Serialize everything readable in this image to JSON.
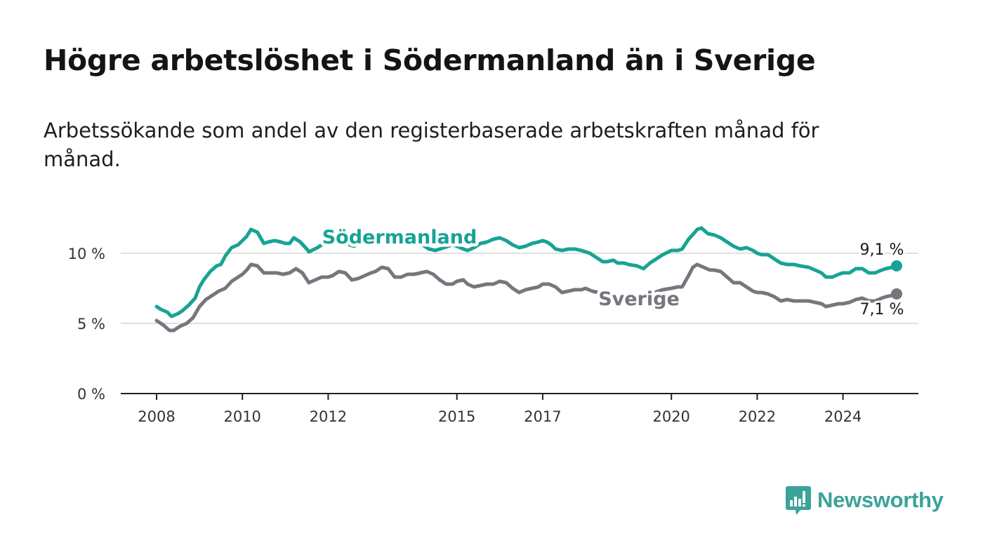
{
  "header": {
    "title": "Högre arbetslöshet i Södermanland än i Sverige",
    "subtitle": "Arbetssökande som andel av den registerbaserade arbetskraften månad för månad."
  },
  "brand": {
    "name": "Newsworthy",
    "icon": "newsworthy-logo-icon",
    "color": "#3aa39a"
  },
  "chart_data": {
    "type": "line",
    "title": "Högre arbetslöshet i Södermanland än i Sverige",
    "subtitle": "Arbetssökande som andel av den registerbaserade arbetskraften månad för månad.",
    "xlabel": "",
    "ylabel": "",
    "xlim": [
      2007.8,
      2025.8
    ],
    "ylim": [
      0,
      12
    ],
    "grid": true,
    "legend": "inline-labels",
    "x_ticks": [
      {
        "value": 2008,
        "label": "2008"
      },
      {
        "value": 2010,
        "label": "2010"
      },
      {
        "value": 2012,
        "label": "2012"
      },
      {
        "value": 2015,
        "label": "2015"
      },
      {
        "value": 2017,
        "label": "2017"
      },
      {
        "value": 2020,
        "label": "2020"
      },
      {
        "value": 2022,
        "label": "2022"
      },
      {
        "value": 2024,
        "label": "2024"
      }
    ],
    "y_ticks": [
      {
        "value": 0,
        "label": "0 %"
      },
      {
        "value": 5,
        "label": "5 %"
      },
      {
        "value": 10,
        "label": "10 %"
      }
    ],
    "series": [
      {
        "name": "Södermanland",
        "color": "#17a394",
        "end_label": "9,1 %",
        "points": [
          [
            2008.0,
            6.2
          ],
          [
            2008.1,
            6.0
          ],
          [
            2008.25,
            5.8
          ],
          [
            2008.35,
            5.5
          ],
          [
            2008.5,
            5.7
          ],
          [
            2008.6,
            5.9
          ],
          [
            2008.75,
            6.3
          ],
          [
            2008.9,
            6.8
          ],
          [
            2009.0,
            7.6
          ],
          [
            2009.1,
            8.1
          ],
          [
            2009.25,
            8.7
          ],
          [
            2009.4,
            9.1
          ],
          [
            2009.5,
            9.2
          ],
          [
            2009.6,
            9.8
          ],
          [
            2009.75,
            10.4
          ],
          [
            2009.9,
            10.6
          ],
          [
            2010.0,
            10.9
          ],
          [
            2010.1,
            11.2
          ],
          [
            2010.2,
            11.7
          ],
          [
            2010.35,
            11.5
          ],
          [
            2010.5,
            10.7
          ],
          [
            2010.6,
            10.8
          ],
          [
            2010.75,
            10.9
          ],
          [
            2010.9,
            10.8
          ],
          [
            2011.0,
            10.7
          ],
          [
            2011.1,
            10.7
          ],
          [
            2011.2,
            11.1
          ],
          [
            2011.35,
            10.8
          ],
          [
            2011.5,
            10.3
          ],
          [
            2011.55,
            10.1
          ],
          [
            2011.75,
            10.4
          ],
          [
            2011.9,
            10.7
          ],
          [
            2012.0,
            10.7
          ],
          [
            2012.1,
            10.9
          ],
          [
            2012.25,
            11.3
          ],
          [
            2012.4,
            11.0
          ],
          [
            2012.5,
            10.6
          ],
          [
            2012.6,
            10.5
          ],
          [
            2012.75,
            10.8
          ],
          [
            2012.9,
            11.0
          ],
          [
            2013.0,
            11.2
          ],
          [
            2013.2,
            11.4
          ],
          [
            2013.4,
            11.1
          ],
          [
            2013.6,
            10.9
          ],
          [
            2013.8,
            10.8
          ],
          [
            2014.0,
            10.8
          ],
          [
            2014.2,
            10.6
          ],
          [
            2014.35,
            10.3
          ],
          [
            2014.5,
            10.2
          ],
          [
            2014.7,
            10.4
          ],
          [
            2014.9,
            10.6
          ],
          [
            2015.0,
            10.5
          ],
          [
            2015.15,
            10.3
          ],
          [
            2015.25,
            10.2
          ],
          [
            2015.4,
            10.4
          ],
          [
            2015.55,
            10.7
          ],
          [
            2015.7,
            10.8
          ],
          [
            2015.85,
            11.0
          ],
          [
            2016.0,
            11.1
          ],
          [
            2016.15,
            10.9
          ],
          [
            2016.3,
            10.6
          ],
          [
            2016.45,
            10.4
          ],
          [
            2016.6,
            10.5
          ],
          [
            2016.75,
            10.7
          ],
          [
            2016.9,
            10.8
          ],
          [
            2017.0,
            10.9
          ],
          [
            2017.1,
            10.8
          ],
          [
            2017.2,
            10.6
          ],
          [
            2017.3,
            10.3
          ],
          [
            2017.45,
            10.2
          ],
          [
            2017.6,
            10.3
          ],
          [
            2017.75,
            10.3
          ],
          [
            2017.9,
            10.2
          ],
          [
            2018.0,
            10.1
          ],
          [
            2018.1,
            10.0
          ],
          [
            2018.25,
            9.7
          ],
          [
            2018.4,
            9.4
          ],
          [
            2018.5,
            9.4
          ],
          [
            2018.65,
            9.5
          ],
          [
            2018.75,
            9.3
          ],
          [
            2018.9,
            9.3
          ],
          [
            2019.0,
            9.2
          ],
          [
            2019.2,
            9.1
          ],
          [
            2019.35,
            8.9
          ],
          [
            2019.5,
            9.3
          ],
          [
            2019.65,
            9.6
          ],
          [
            2019.8,
            9.9
          ],
          [
            2020.0,
            10.2
          ],
          [
            2020.15,
            10.2
          ],
          [
            2020.25,
            10.3
          ],
          [
            2020.4,
            11.0
          ],
          [
            2020.55,
            11.5
          ],
          [
            2020.6,
            11.7
          ],
          [
            2020.7,
            11.8
          ],
          [
            2020.85,
            11.4
          ],
          [
            2021.0,
            11.3
          ],
          [
            2021.15,
            11.1
          ],
          [
            2021.3,
            10.8
          ],
          [
            2021.45,
            10.5
          ],
          [
            2021.6,
            10.3
          ],
          [
            2021.75,
            10.4
          ],
          [
            2021.9,
            10.2
          ],
          [
            2022.0,
            10.0
          ],
          [
            2022.1,
            9.9
          ],
          [
            2022.25,
            9.9
          ],
          [
            2022.4,
            9.6
          ],
          [
            2022.55,
            9.3
          ],
          [
            2022.7,
            9.2
          ],
          [
            2022.85,
            9.2
          ],
          [
            2023.0,
            9.1
          ],
          [
            2023.2,
            9.0
          ],
          [
            2023.35,
            8.8
          ],
          [
            2023.5,
            8.6
          ],
          [
            2023.6,
            8.3
          ],
          [
            2023.75,
            8.3
          ],
          [
            2023.9,
            8.5
          ],
          [
            2024.0,
            8.6
          ],
          [
            2024.15,
            8.6
          ],
          [
            2024.3,
            8.9
          ],
          [
            2024.45,
            8.9
          ],
          [
            2024.6,
            8.6
          ],
          [
            2024.75,
            8.6
          ],
          [
            2024.9,
            8.8
          ],
          [
            2025.0,
            8.9
          ],
          [
            2025.15,
            9.0
          ],
          [
            2025.25,
            9.1
          ]
        ]
      },
      {
        "name": "Sverige",
        "color": "#77757d",
        "end_label": "7,1 %",
        "points": [
          [
            2008.0,
            5.2
          ],
          [
            2008.15,
            4.9
          ],
          [
            2008.3,
            4.5
          ],
          [
            2008.4,
            4.5
          ],
          [
            2008.55,
            4.8
          ],
          [
            2008.7,
            5.0
          ],
          [
            2008.85,
            5.4
          ],
          [
            2009.0,
            6.2
          ],
          [
            2009.15,
            6.7
          ],
          [
            2009.3,
            7.0
          ],
          [
            2009.45,
            7.3
          ],
          [
            2009.6,
            7.5
          ],
          [
            2009.75,
            8.0
          ],
          [
            2009.9,
            8.3
          ],
          [
            2010.0,
            8.5
          ],
          [
            2010.1,
            8.8
          ],
          [
            2010.2,
            9.2
          ],
          [
            2010.35,
            9.1
          ],
          [
            2010.5,
            8.6
          ],
          [
            2010.65,
            8.6
          ],
          [
            2010.8,
            8.6
          ],
          [
            2010.95,
            8.5
          ],
          [
            2011.1,
            8.6
          ],
          [
            2011.25,
            8.9
          ],
          [
            2011.4,
            8.6
          ],
          [
            2011.55,
            7.9
          ],
          [
            2011.7,
            8.1
          ],
          [
            2011.85,
            8.3
          ],
          [
            2012.0,
            8.3
          ],
          [
            2012.1,
            8.4
          ],
          [
            2012.25,
            8.7
          ],
          [
            2012.4,
            8.6
          ],
          [
            2012.55,
            8.1
          ],
          [
            2012.7,
            8.2
          ],
          [
            2012.85,
            8.4
          ],
          [
            2013.0,
            8.6
          ],
          [
            2013.1,
            8.7
          ],
          [
            2013.25,
            9.0
          ],
          [
            2013.4,
            8.9
          ],
          [
            2013.55,
            8.3
          ],
          [
            2013.7,
            8.3
          ],
          [
            2013.85,
            8.5
          ],
          [
            2014.0,
            8.5
          ],
          [
            2014.15,
            8.6
          ],
          [
            2014.3,
            8.7
          ],
          [
            2014.45,
            8.5
          ],
          [
            2014.6,
            8.1
          ],
          [
            2014.75,
            7.8
          ],
          [
            2014.9,
            7.8
          ],
          [
            2015.0,
            8.0
          ],
          [
            2015.15,
            8.1
          ],
          [
            2015.25,
            7.8
          ],
          [
            2015.4,
            7.6
          ],
          [
            2015.55,
            7.7
          ],
          [
            2015.7,
            7.8
          ],
          [
            2015.85,
            7.8
          ],
          [
            2016.0,
            8.0
          ],
          [
            2016.15,
            7.9
          ],
          [
            2016.3,
            7.5
          ],
          [
            2016.45,
            7.2
          ],
          [
            2016.6,
            7.4
          ],
          [
            2016.75,
            7.5
          ],
          [
            2016.9,
            7.6
          ],
          [
            2017.0,
            7.8
          ],
          [
            2017.15,
            7.8
          ],
          [
            2017.3,
            7.6
          ],
          [
            2017.45,
            7.2
          ],
          [
            2017.6,
            7.3
          ],
          [
            2017.75,
            7.4
          ],
          [
            2017.9,
            7.4
          ],
          [
            2018.0,
            7.5
          ],
          [
            2018.15,
            7.3
          ],
          [
            2018.3,
            7.2
          ],
          [
            2018.45,
            6.9
          ],
          [
            2018.6,
            6.9
          ],
          [
            2018.75,
            7.0
          ],
          [
            2018.9,
            7.0
          ],
          [
            2019.0,
            7.1
          ],
          [
            2019.2,
            7.0
          ],
          [
            2019.4,
            7.0
          ],
          [
            2019.6,
            7.2
          ],
          [
            2019.8,
            7.4
          ],
          [
            2020.0,
            7.5
          ],
          [
            2020.15,
            7.6
          ],
          [
            2020.25,
            7.6
          ],
          [
            2020.4,
            8.4
          ],
          [
            2020.5,
            9.0
          ],
          [
            2020.6,
            9.2
          ],
          [
            2020.75,
            9.0
          ],
          [
            2020.9,
            8.8
          ],
          [
            2021.0,
            8.8
          ],
          [
            2021.15,
            8.7
          ],
          [
            2021.3,
            8.3
          ],
          [
            2021.45,
            7.9
          ],
          [
            2021.6,
            7.9
          ],
          [
            2021.75,
            7.6
          ],
          [
            2021.9,
            7.3
          ],
          [
            2022.0,
            7.2
          ],
          [
            2022.1,
            7.2
          ],
          [
            2022.25,
            7.1
          ],
          [
            2022.4,
            6.9
          ],
          [
            2022.55,
            6.6
          ],
          [
            2022.7,
            6.7
          ],
          [
            2022.85,
            6.6
          ],
          [
            2023.0,
            6.6
          ],
          [
            2023.2,
            6.6
          ],
          [
            2023.35,
            6.5
          ],
          [
            2023.5,
            6.4
          ],
          [
            2023.6,
            6.2
          ],
          [
            2023.75,
            6.3
          ],
          [
            2023.9,
            6.4
          ],
          [
            2024.0,
            6.4
          ],
          [
            2024.15,
            6.5
          ],
          [
            2024.3,
            6.7
          ],
          [
            2024.45,
            6.8
          ],
          [
            2024.6,
            6.6
          ],
          [
            2024.75,
            6.6
          ],
          [
            2024.9,
            6.8
          ],
          [
            2025.0,
            6.9
          ],
          [
            2025.15,
            7.0
          ],
          [
            2025.25,
            7.1
          ]
        ]
      }
    ]
  }
}
